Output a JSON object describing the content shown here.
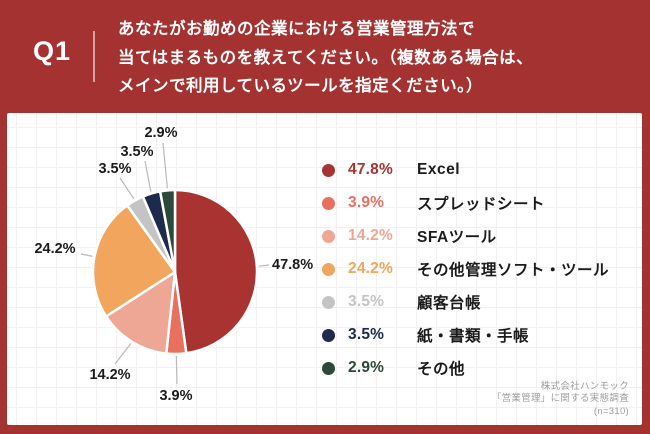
{
  "header": {
    "q_label": "Q1",
    "question_lines": [
      "あなたがお勤めの企業における営業管理方法で",
      "当てはまるものを教えてください。（複数ある場合は、",
      "メインで利用しているツールを指定ください。）"
    ]
  },
  "chart_data": {
    "type": "pie",
    "title": "あなたがお勤めの企業における営業管理方法で当てはまるものを教えてください。（複数ある場合は、メインで利用しているツールを指定ください。）",
    "direction": "clockwise",
    "start_angle_deg": 0,
    "legend_position": "right",
    "items": [
      {
        "label": "Excel",
        "value": 47.8,
        "pct_label": "47.8%",
        "color": "#A93331"
      },
      {
        "label": "スプレッドシート",
        "value": 3.9,
        "pct_label": "3.9%",
        "color": "#E7705F"
      },
      {
        "label": "SFAツール",
        "value": 14.2,
        "pct_label": "14.2%",
        "color": "#EFA795"
      },
      {
        "label": "その他管理ソフト・ツール",
        "value": 24.2,
        "pct_label": "24.2%",
        "color": "#F2A55C"
      },
      {
        "label": "顧客台帳",
        "value": 3.5,
        "pct_label": "3.5%",
        "color": "#C5C4C4"
      },
      {
        "label": "紙・書類・手帳",
        "value": 3.5,
        "pct_label": "3.5%",
        "color": "#1E2A4D"
      },
      {
        "label": "その他",
        "value": 2.9,
        "pct_label": "2.9%",
        "color": "#2B4839"
      }
    ],
    "source_lines": [
      "株式会社ハンモック",
      "「営業管理」に関する実態調査",
      "(n=310)"
    ]
  },
  "colors": {
    "frame_red": "#A43230",
    "panel_bg": "#FFFFFF",
    "text_dark": "#1B1B1B",
    "leader_gray": "#BBB8B8",
    "source_gray": "#9C9C9C"
  }
}
